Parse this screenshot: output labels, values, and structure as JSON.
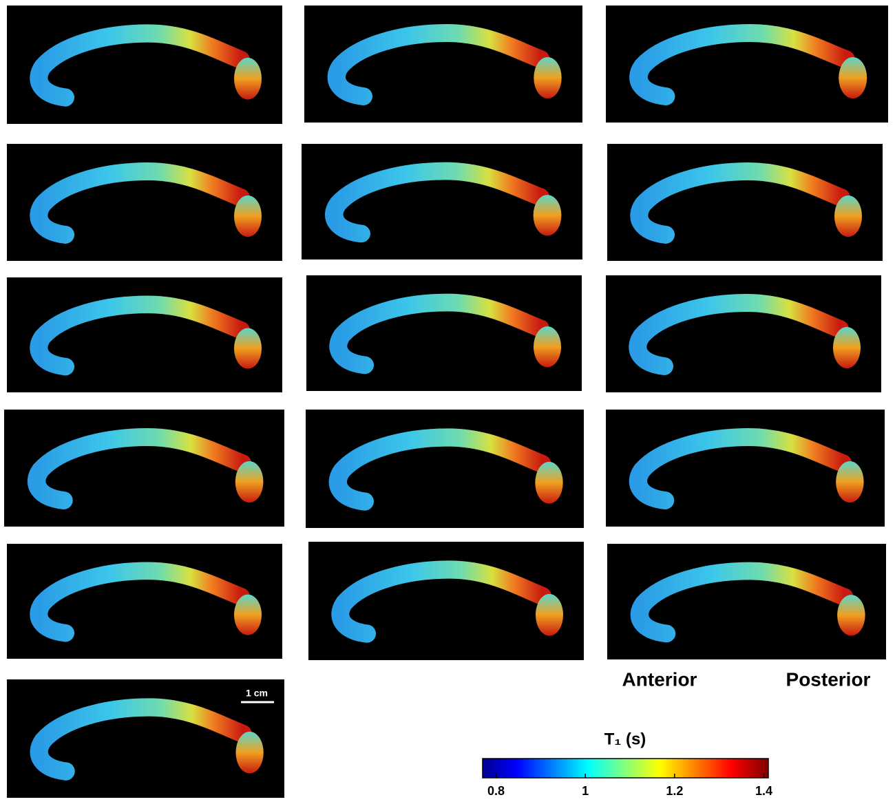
{
  "labels": {
    "anterior": "Anterior",
    "posterior": "Posterior",
    "scale_bar": "1 cm"
  },
  "colorbar": {
    "label": "T₁ (s)",
    "lim": [
      0.77,
      1.41
    ],
    "ticks": [
      0.8,
      1,
      1.2,
      1.4
    ]
  }
}
